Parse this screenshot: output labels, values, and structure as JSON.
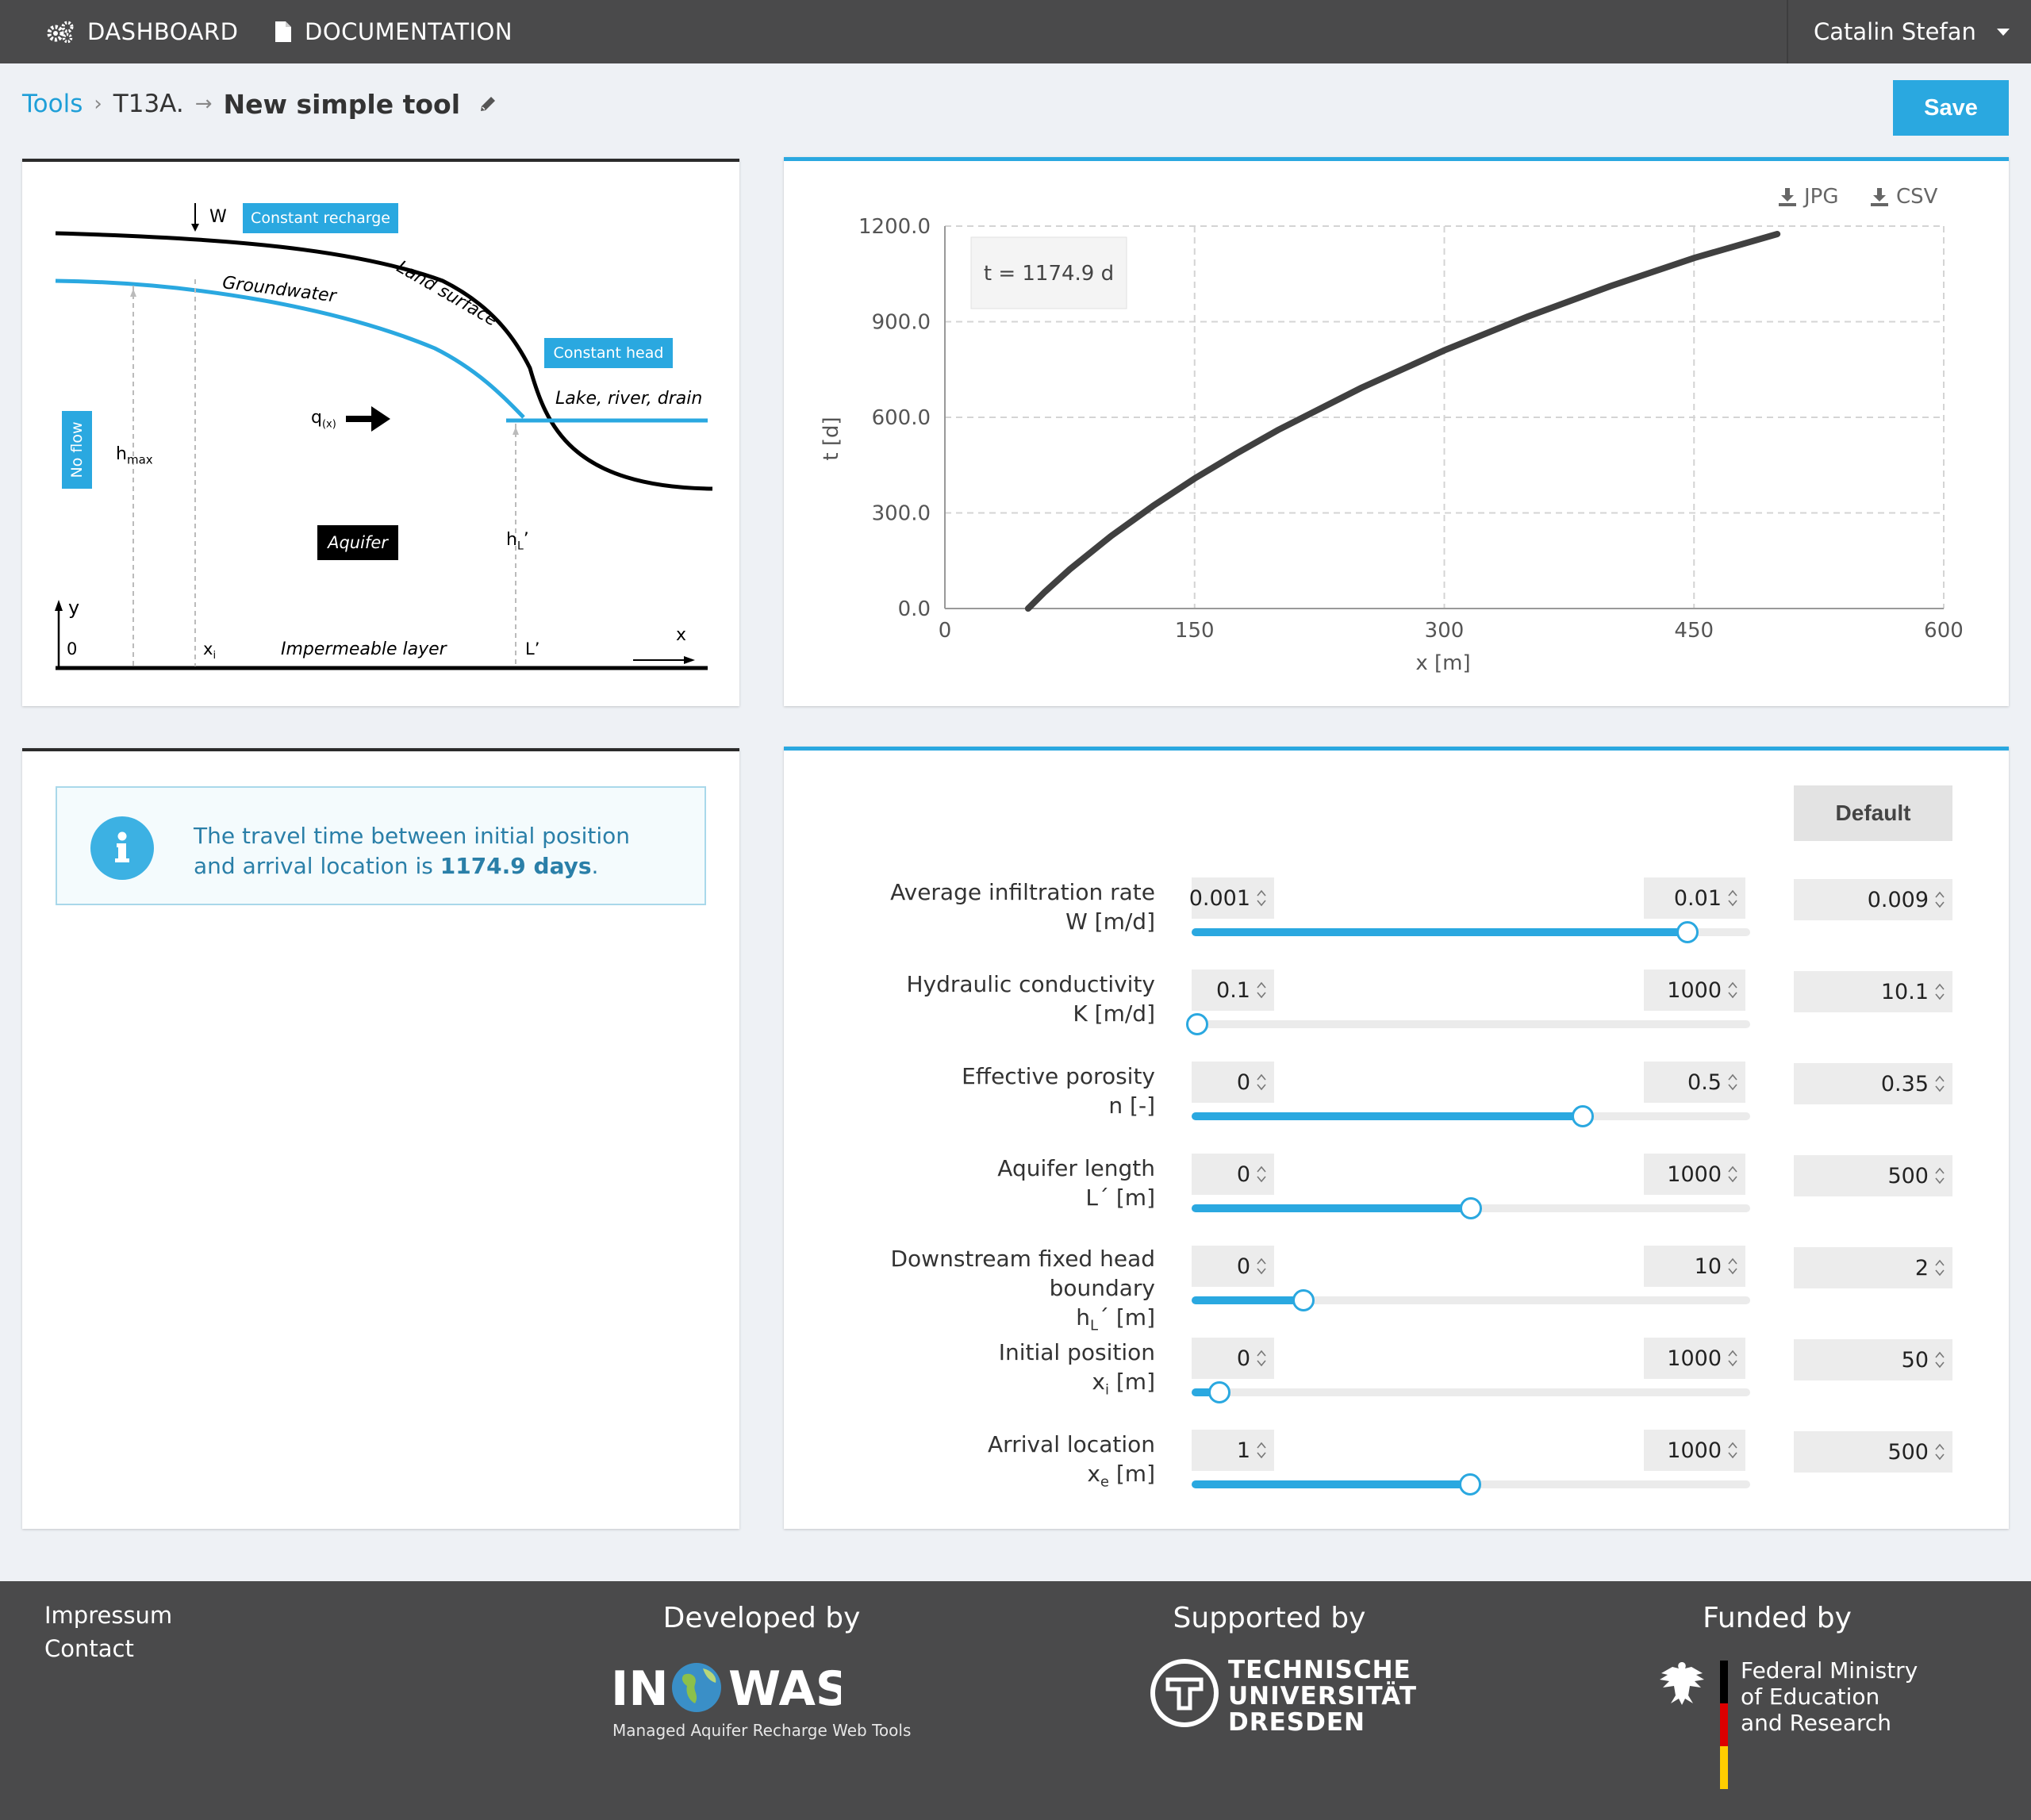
{
  "nav": {
    "dashboard_label": "DASHBOARD",
    "documentation_label": "DOCUMENTATION",
    "user_name": "Catalin Stefan"
  },
  "breadcrumb": {
    "root": "Tools",
    "tool_code": "T13A.",
    "tool_name": "New simple tool"
  },
  "toolbar": {
    "save_label": "Save"
  },
  "diagram": {
    "recharge_symbol": "W",
    "recharge_label": "Constant recharge",
    "groundwater_label": "Groundwater",
    "land_surface_label": "Land surface",
    "constant_head_label": "Constant head",
    "lake_label": "Lake, river, drain",
    "no_flow_label": "No flow",
    "hmax_label": "h",
    "hmax_sub": "max",
    "flow_label": "q",
    "flow_sub": "(x)",
    "aquifer_label": "Aquifer",
    "hl_label": "h",
    "hl_sub": "L",
    "hl_prime": "’",
    "y_axis": "y",
    "origin": "0",
    "xi_label": "x",
    "xi_sub": "i",
    "impermeable_label": "Impermeable layer",
    "L_label": "L’",
    "x_axis": "x",
    "colors": {
      "blue": "#2aa8e0",
      "black": "#000000"
    }
  },
  "chart": {
    "export_jpg": "JPG",
    "export_csv": "CSV",
    "tooltip": "t = 1174.9 d",
    "xlabel": "x [m]",
    "ylabel": "t [d]",
    "x_ticks": [
      "0",
      "150",
      "300",
      "450",
      "600"
    ],
    "y_ticks": [
      "0.0",
      "300.0",
      "600.0",
      "900.0",
      "1200.0"
    ]
  },
  "chart_data": {
    "type": "line",
    "xlabel": "x [m]",
    "ylabel": "t [d]",
    "xlim": [
      0,
      600
    ],
    "ylim": [
      0,
      1200
    ],
    "grid": true,
    "series": [
      {
        "x": [
          50,
          60,
          75,
          100,
          125,
          150,
          175,
          200,
          250,
          300,
          350,
          400,
          450,
          500
        ],
        "values": [
          0,
          52,
          123,
          228,
          322,
          408,
          486,
          560,
          692,
          810,
          916,
          1012,
          1100,
          1175
        ]
      }
    ],
    "annotation": "t = 1174.9 d",
    "line_color": "#404040"
  },
  "info": {
    "text_before": "The travel time between initial position and arrival location is ",
    "highlight": "1174.9 days",
    "text_after": "."
  },
  "params": {
    "default_label": "Default",
    "items": [
      {
        "label1": "Average infiltration rate",
        "label2": "W [m/d]",
        "min": "0.001",
        "max": "0.01",
        "value": "0.009",
        "fraction": 0.888
      },
      {
        "label1": "Hydraulic conductivity",
        "label2": "K [m/d]",
        "min": "0.1",
        "max": "1000",
        "value": "10.1",
        "fraction": 0.01
      },
      {
        "label1": "Effective porosity",
        "label2": "n [-]",
        "min": "0",
        "max": "0.5",
        "value": "0.35",
        "fraction": 0.7
      },
      {
        "label1": "Aquifer length",
        "label2": "L´ [m]",
        "min": "0",
        "max": "1000",
        "value": "500",
        "fraction": 0.5
      },
      {
        "label1": "Downstream fixed head",
        "label1b": "boundary",
        "label2": "hL´ [m]",
        "min": "0",
        "max": "10",
        "value": "2",
        "fraction": 0.2
      },
      {
        "label1": "Initial position",
        "label2": "xi [m]",
        "min": "0",
        "max": "1000",
        "value": "50",
        "fraction": 0.05
      },
      {
        "label1": "Arrival location",
        "label2": "xe [m]",
        "min": "1",
        "max": "1000",
        "value": "500",
        "fraction": 0.499
      }
    ]
  },
  "footer": {
    "impressum": "Impressum",
    "contact": "Contact",
    "developed_by": "Developed by",
    "supported_by": "Supported by",
    "funded_by": "Funded by",
    "inowas_subtitle": "Managed Aquifer Recharge Web Tools",
    "inowas_logo_text": "IN WAS",
    "tud_lines": [
      "TECHNISCHE",
      "UNIVERSITÄT",
      "DRESDEN"
    ],
    "bmbf_lines": [
      "Federal Ministry",
      "of Education",
      "and Research"
    ]
  }
}
